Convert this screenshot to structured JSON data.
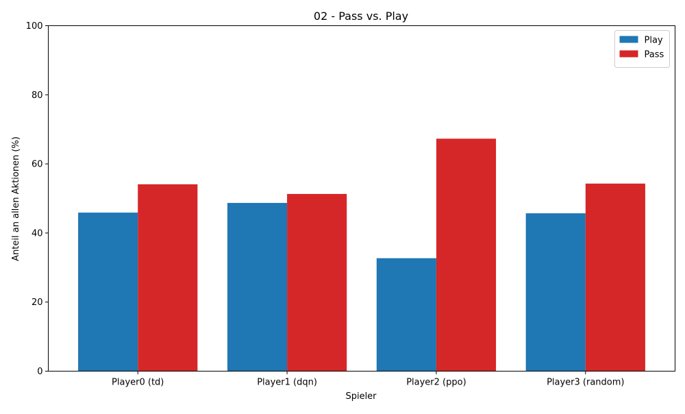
{
  "chart_data": {
    "type": "bar",
    "title": "02 - Pass vs. Play",
    "xlabel": "Spieler",
    "ylabel": "Anteil an allen Aktionen (%)",
    "categories": [
      "Player0 (td)",
      "Player1 (dqn)",
      "Player2 (ppo)",
      "Player3 (random)"
    ],
    "series": [
      {
        "name": "Play",
        "color": "#1f77b4",
        "values": [
          45.9,
          48.7,
          32.7,
          45.7
        ]
      },
      {
        "name": "Pass",
        "color": "#d62728",
        "values": [
          54.1,
          51.3,
          67.3,
          54.3
        ]
      }
    ],
    "ylim": [
      0,
      100
    ],
    "yticks": [
      "0",
      "20",
      "40",
      "60",
      "80",
      "100"
    ],
    "grid": false,
    "legend_position": "top-right"
  }
}
